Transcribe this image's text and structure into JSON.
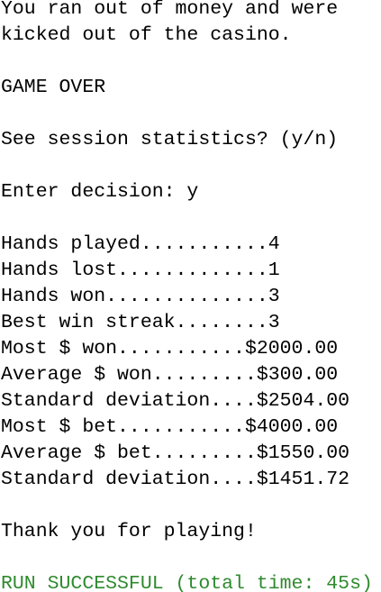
{
  "console": {
    "messages": [
      "You ran out of money and were",
      "kicked out of the casino."
    ],
    "game_over": "GAME OVER",
    "prompt": "See session statistics? (y/n)",
    "decision": "Enter decision: y",
    "statistics": [
      "Hands played...........4",
      "Hands lost.............1",
      "Hands won..............3",
      "Best win streak........3",
      "Most $ won...........$2000.00",
      "Average $ won.........$300.00",
      "Standard deviation....$2504.00",
      "Most $ bet...........$4000.00",
      "Average $ bet.........$1550.00",
      "Standard deviation....$1451.72"
    ],
    "farewell": "Thank you for playing!",
    "status": "RUN SUCCESSFUL (total time: 45s)"
  }
}
